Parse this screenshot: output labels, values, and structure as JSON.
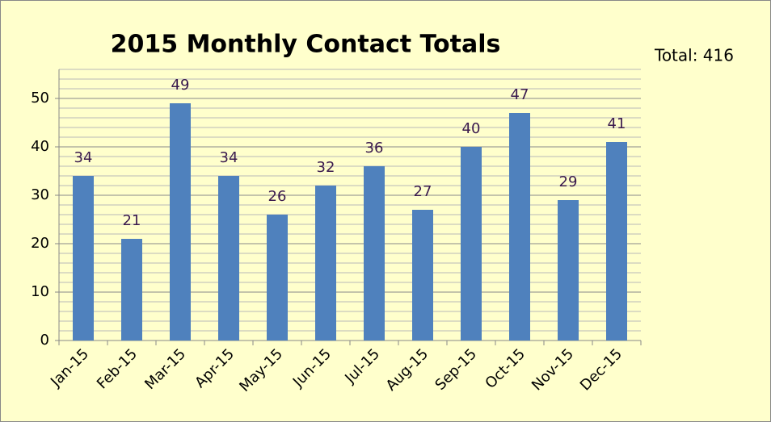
{
  "chart_data": {
    "type": "bar",
    "title": "2015 Monthly Contact Totals",
    "annotation": "Total:  416",
    "categories": [
      "Jan-15",
      "Feb-15",
      "Mar-15",
      "Apr-15",
      "May-15",
      "Jun-15",
      "Jul-15",
      "Aug-15",
      "Sep-15",
      "Oct-15",
      "Nov-15",
      "Dec-15"
    ],
    "values": [
      34,
      21,
      49,
      34,
      26,
      32,
      36,
      27,
      40,
      47,
      29,
      41
    ],
    "color": "#4f81bd",
    "ylim": [
      0,
      56
    ],
    "yticks": [
      0,
      10,
      20,
      30,
      40,
      50
    ],
    "grid": true,
    "minor_grid": 5,
    "data_labels": true
  }
}
